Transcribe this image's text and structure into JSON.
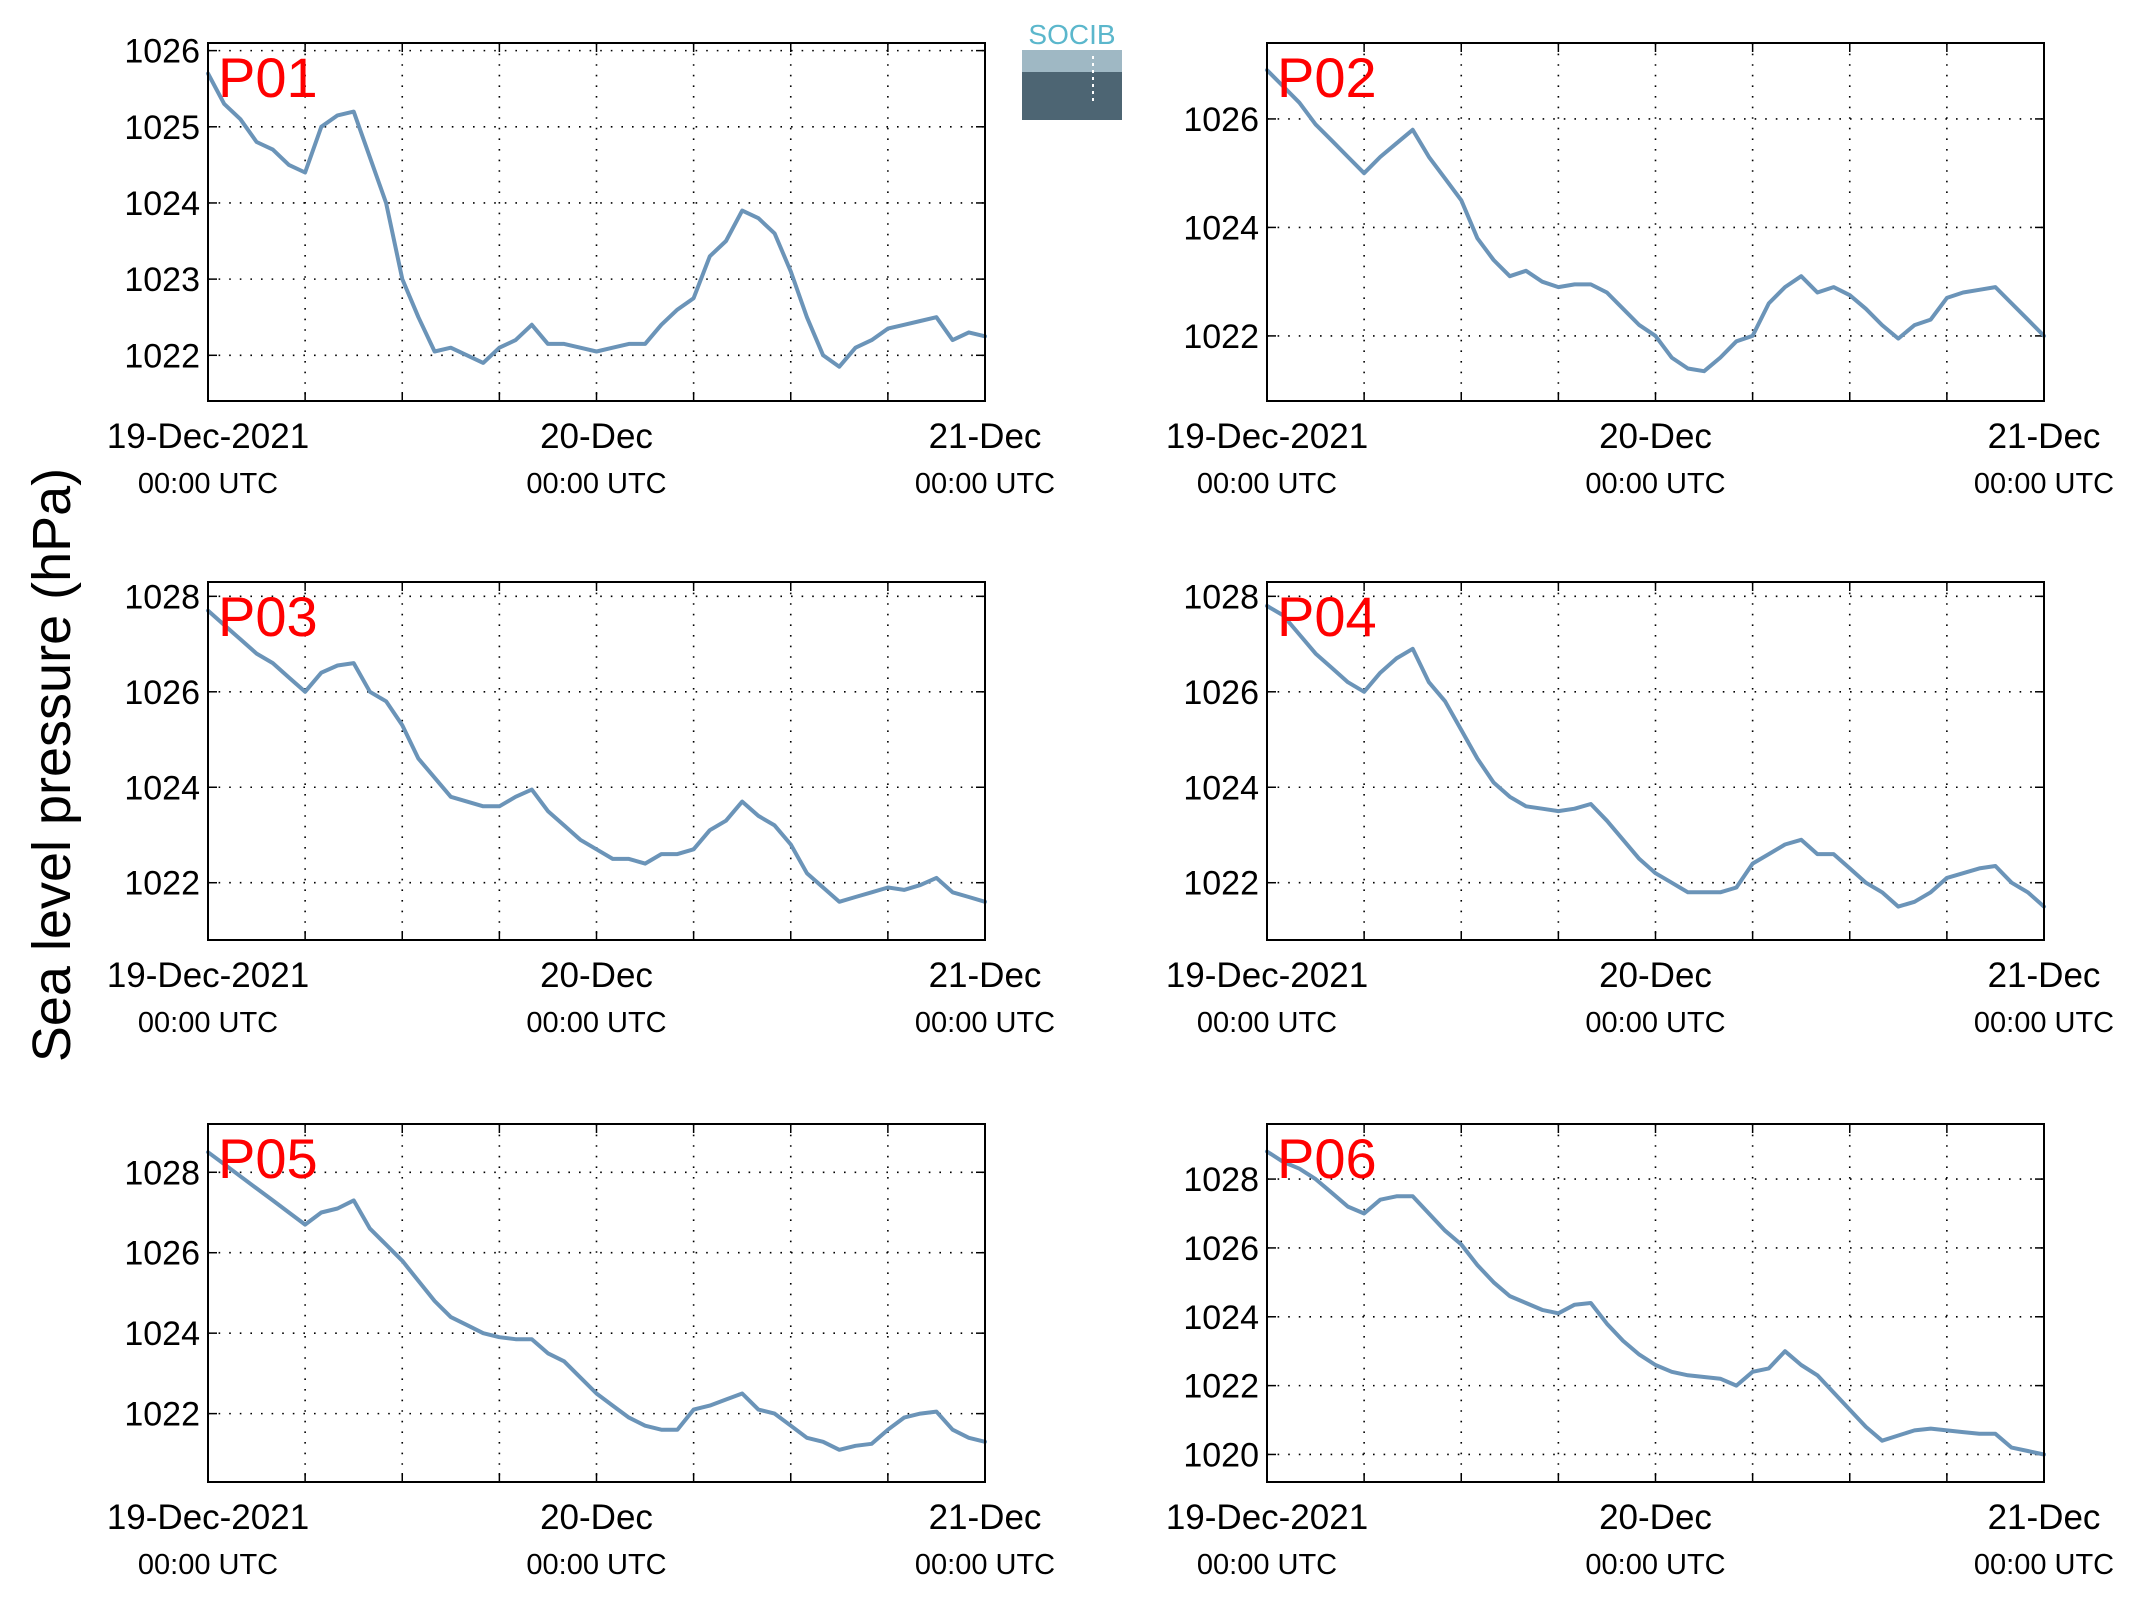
{
  "figure": {
    "ylabel": "Sea level pressure (hPa)",
    "logo_text": "SOCIB",
    "x_ticks": [
      {
        "line1": "19-Dec-2021",
        "line2": "00:00 UTC"
      },
      {
        "line1": "20-Dec",
        "line2": "00:00 UTC"
      },
      {
        "line1": "21-Dec",
        "line2": "00:00 UTC"
      }
    ]
  },
  "colors": {
    "line": "#6b94b8",
    "panel_label": "#ff0000",
    "axis": "#000000",
    "grid": "#000000"
  },
  "chart_data": [
    {
      "type": "line",
      "panel_label": "P01",
      "ylabel": "Sea level pressure (hPa)",
      "x_unit": "hours since 19-Dec-2021 00:00 UTC",
      "xlim": [
        0,
        48
      ],
      "ylim": [
        1021.4,
        1026.1
      ],
      "yticks": [
        1022,
        1023,
        1024,
        1025,
        1026
      ],
      "grid": true,
      "x": [
        0,
        1,
        2,
        3,
        4,
        5,
        6,
        7,
        8,
        9,
        10,
        11,
        12,
        13,
        14,
        15,
        16,
        17,
        18,
        19,
        20,
        21,
        22,
        23,
        24,
        25,
        26,
        27,
        28,
        29,
        30,
        31,
        32,
        33,
        34,
        35,
        36,
        37,
        38,
        39,
        40,
        41,
        42,
        43,
        44,
        45,
        46,
        47,
        48
      ],
      "y": [
        1025.7,
        1025.3,
        1025.1,
        1024.8,
        1024.7,
        1024.5,
        1024.4,
        1025.0,
        1025.15,
        1025.2,
        1024.6,
        1024.0,
        1023.0,
        1022.5,
        1022.05,
        1022.1,
        1022.0,
        1021.9,
        1022.1,
        1022.2,
        1022.4,
        1022.15,
        1022.15,
        1022.1,
        1022.05,
        1022.1,
        1022.15,
        1022.15,
        1022.4,
        1022.6,
        1022.75,
        1023.3,
        1023.5,
        1023.9,
        1023.8,
        1023.6,
        1023.1,
        1022.5,
        1022.0,
        1021.85,
        1022.1,
        1022.2,
        1022.35,
        1022.4,
        1022.45,
        1022.5,
        1022.2,
        1022.3,
        1022.25
      ]
    },
    {
      "type": "line",
      "panel_label": "P02",
      "ylabel": "Sea level pressure (hPa)",
      "x_unit": "hours since 19-Dec-2021 00:00 UTC",
      "xlim": [
        0,
        48
      ],
      "ylim": [
        1020.8,
        1027.4
      ],
      "yticks": [
        1022,
        1024,
        1026
      ],
      "grid": true,
      "x": [
        0,
        1,
        2,
        3,
        4,
        5,
        6,
        7,
        8,
        9,
        10,
        11,
        12,
        13,
        14,
        15,
        16,
        17,
        18,
        19,
        20,
        21,
        22,
        23,
        24,
        25,
        26,
        27,
        28,
        29,
        30,
        31,
        32,
        33,
        34,
        35,
        36,
        37,
        38,
        39,
        40,
        41,
        42,
        43,
        44,
        45,
        46,
        47,
        48
      ],
      "y": [
        1026.9,
        1026.6,
        1026.3,
        1025.9,
        1025.6,
        1025.3,
        1025.0,
        1025.3,
        1025.55,
        1025.8,
        1025.3,
        1024.9,
        1024.5,
        1023.8,
        1023.4,
        1023.1,
        1023.2,
        1023.0,
        1022.9,
        1022.95,
        1022.95,
        1022.8,
        1022.5,
        1022.2,
        1022.0,
        1021.6,
        1021.4,
        1021.35,
        1021.6,
        1021.9,
        1022.0,
        1022.6,
        1022.9,
        1023.1,
        1022.8,
        1022.9,
        1022.75,
        1022.5,
        1022.2,
        1021.95,
        1022.2,
        1022.3,
        1022.7,
        1022.8,
        1022.85,
        1022.9,
        1022.6,
        1022.3,
        1022.0
      ]
    },
    {
      "type": "line",
      "panel_label": "P03",
      "ylabel": "Sea level pressure (hPa)",
      "x_unit": "hours since 19-Dec-2021 00:00 UTC",
      "xlim": [
        0,
        48
      ],
      "ylim": [
        1020.8,
        1028.3
      ],
      "yticks": [
        1022,
        1024,
        1026,
        1028
      ],
      "grid": true,
      "x": [
        0,
        1,
        2,
        3,
        4,
        5,
        6,
        7,
        8,
        9,
        10,
        11,
        12,
        13,
        14,
        15,
        16,
        17,
        18,
        19,
        20,
        21,
        22,
        23,
        24,
        25,
        26,
        27,
        28,
        29,
        30,
        31,
        32,
        33,
        34,
        35,
        36,
        37,
        38,
        39,
        40,
        41,
        42,
        43,
        44,
        45,
        46,
        47,
        48
      ],
      "y": [
        1027.7,
        1027.4,
        1027.1,
        1026.8,
        1026.6,
        1026.3,
        1026.0,
        1026.4,
        1026.55,
        1026.6,
        1026.0,
        1025.8,
        1025.3,
        1024.6,
        1024.2,
        1023.8,
        1023.7,
        1023.6,
        1023.6,
        1023.8,
        1023.95,
        1023.5,
        1023.2,
        1022.9,
        1022.7,
        1022.5,
        1022.5,
        1022.4,
        1022.6,
        1022.6,
        1022.7,
        1023.1,
        1023.3,
        1023.7,
        1023.4,
        1023.2,
        1022.8,
        1022.2,
        1021.9,
        1021.6,
        1021.7,
        1021.8,
        1021.9,
        1021.85,
        1021.95,
        1022.1,
        1021.8,
        1021.7,
        1021.6
      ]
    },
    {
      "type": "line",
      "panel_label": "P04",
      "ylabel": "Sea level pressure (hPa)",
      "x_unit": "hours since 19-Dec-2021 00:00 UTC",
      "xlim": [
        0,
        48
      ],
      "ylim": [
        1020.8,
        1028.3
      ],
      "yticks": [
        1022,
        1024,
        1026,
        1028
      ],
      "grid": true,
      "x": [
        0,
        1,
        2,
        3,
        4,
        5,
        6,
        7,
        8,
        9,
        10,
        11,
        12,
        13,
        14,
        15,
        16,
        17,
        18,
        19,
        20,
        21,
        22,
        23,
        24,
        25,
        26,
        27,
        28,
        29,
        30,
        31,
        32,
        33,
        34,
        35,
        36,
        37,
        38,
        39,
        40,
        41,
        42,
        43,
        44,
        45,
        46,
        47,
        48
      ],
      "y": [
        1027.8,
        1027.6,
        1027.2,
        1026.8,
        1026.5,
        1026.2,
        1026.0,
        1026.4,
        1026.7,
        1026.9,
        1026.2,
        1025.8,
        1025.2,
        1024.6,
        1024.1,
        1023.8,
        1023.6,
        1023.55,
        1023.5,
        1023.55,
        1023.65,
        1023.3,
        1022.9,
        1022.5,
        1022.2,
        1022.0,
        1021.8,
        1021.8,
        1021.8,
        1021.9,
        1022.4,
        1022.6,
        1022.8,
        1022.9,
        1022.6,
        1022.6,
        1022.3,
        1022.0,
        1021.8,
        1021.5,
        1021.6,
        1021.8,
        1022.1,
        1022.2,
        1022.3,
        1022.35,
        1022.0,
        1021.8,
        1021.5
      ]
    },
    {
      "type": "line",
      "panel_label": "P05",
      "ylabel": "Sea level pressure (hPa)",
      "x_unit": "hours since 19-Dec-2021 00:00 UTC",
      "xlim": [
        0,
        48
      ],
      "ylim": [
        1020.3,
        1029.2
      ],
      "yticks": [
        1022,
        1024,
        1026,
        1028
      ],
      "grid": true,
      "x": [
        0,
        1,
        2,
        3,
        4,
        5,
        6,
        7,
        8,
        9,
        10,
        11,
        12,
        13,
        14,
        15,
        16,
        17,
        18,
        19,
        20,
        21,
        22,
        23,
        24,
        25,
        26,
        27,
        28,
        29,
        30,
        31,
        32,
        33,
        34,
        35,
        36,
        37,
        38,
        39,
        40,
        41,
        42,
        43,
        44,
        45,
        46,
        47,
        48
      ],
      "y": [
        1028.5,
        1028.2,
        1027.9,
        1027.6,
        1027.3,
        1027.0,
        1026.7,
        1027.0,
        1027.1,
        1027.3,
        1026.6,
        1026.2,
        1025.8,
        1025.3,
        1024.8,
        1024.4,
        1024.2,
        1024.0,
        1023.9,
        1023.85,
        1023.85,
        1023.5,
        1023.3,
        1022.9,
        1022.5,
        1022.2,
        1021.9,
        1021.7,
        1021.6,
        1021.6,
        1022.1,
        1022.2,
        1022.35,
        1022.5,
        1022.1,
        1022.0,
        1021.7,
        1021.4,
        1021.3,
        1021.1,
        1021.2,
        1021.25,
        1021.6,
        1021.9,
        1022.0,
        1022.05,
        1021.6,
        1021.4,
        1021.3
      ]
    },
    {
      "type": "line",
      "panel_label": "P06",
      "ylabel": "Sea level pressure (hPa)",
      "x_unit": "hours since 19-Dec-2021 00:00 UTC",
      "xlim": [
        0,
        48
      ],
      "ylim": [
        1019.2,
        1029.6
      ],
      "yticks": [
        1020,
        1022,
        1024,
        1026,
        1028
      ],
      "grid": true,
      "x": [
        0,
        1,
        2,
        3,
        4,
        5,
        6,
        7,
        8,
        9,
        10,
        11,
        12,
        13,
        14,
        15,
        16,
        17,
        18,
        19,
        20,
        21,
        22,
        23,
        24,
        25,
        26,
        27,
        28,
        29,
        30,
        31,
        32,
        33,
        34,
        35,
        36,
        37,
        38,
        39,
        40,
        41,
        42,
        43,
        44,
        45,
        46,
        47,
        48
      ],
      "y": [
        1028.8,
        1028.5,
        1028.3,
        1028.0,
        1027.6,
        1027.2,
        1027.0,
        1027.4,
        1027.5,
        1027.5,
        1027.0,
        1026.5,
        1026.1,
        1025.5,
        1025.0,
        1024.6,
        1024.4,
        1024.2,
        1024.1,
        1024.35,
        1024.4,
        1023.8,
        1023.3,
        1022.9,
        1022.6,
        1022.4,
        1022.3,
        1022.25,
        1022.2,
        1022.0,
        1022.4,
        1022.5,
        1023.0,
        1022.6,
        1022.3,
        1021.8,
        1021.3,
        1020.8,
        1020.4,
        1020.55,
        1020.7,
        1020.75,
        1020.7,
        1020.65,
        1020.6,
        1020.6,
        1020.2,
        1020.1,
        1020.0
      ]
    }
  ]
}
